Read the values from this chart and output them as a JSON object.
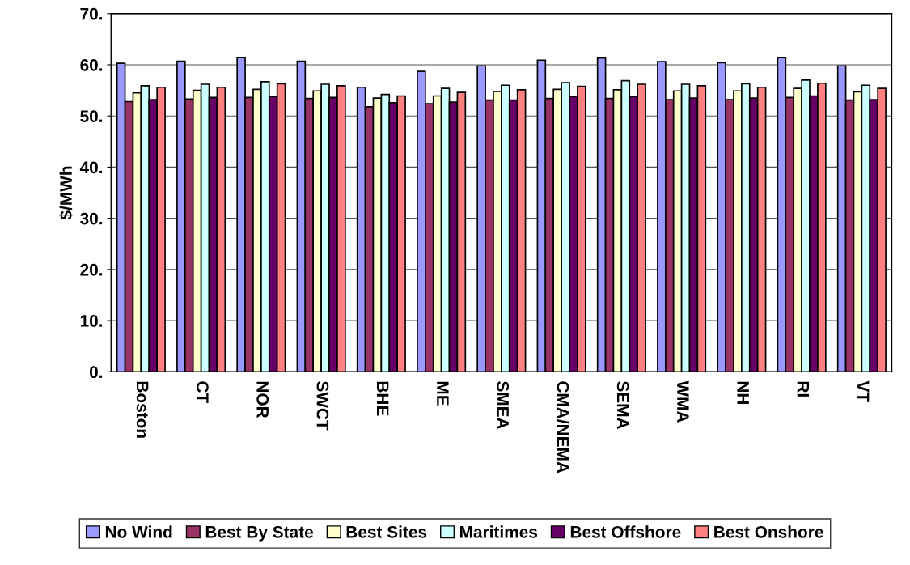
{
  "chart_data": {
    "type": "bar",
    "ylabel": "$/MWh",
    "categories": [
      "Boston",
      "CT",
      "NOR",
      "SWCT",
      "BHE",
      "ME",
      "SMEA",
      "CMA/NEMA",
      "SEMA",
      "WMA",
      "NH",
      "RI",
      "VT"
    ],
    "series": [
      {
        "name": "No Wind",
        "color": "#9999ff",
        "values": [
          60.3,
          60.7,
          61.4,
          60.7,
          55.6,
          58.7,
          59.8,
          60.9,
          61.3,
          60.6,
          60.4,
          61.4,
          59.8
        ]
      },
      {
        "name": "Best By State",
        "color": "#993366",
        "values": [
          52.8,
          53.3,
          53.6,
          53.4,
          51.8,
          52.4,
          53.1,
          53.4,
          53.4,
          53.2,
          53.2,
          53.6,
          53.1
        ]
      },
      {
        "name": "Best Sites",
        "color": "#ffffcc",
        "values": [
          54.5,
          55.0,
          55.2,
          54.9,
          53.5,
          53.9,
          54.8,
          55.2,
          55.1,
          54.9,
          54.9,
          55.4,
          54.7
        ]
      },
      {
        "name": "Maritimes",
        "color": "#ccffff",
        "values": [
          55.9,
          56.2,
          56.7,
          56.2,
          54.2,
          55.4,
          56.0,
          56.5,
          56.9,
          56.2,
          56.3,
          57.0,
          56.0
        ]
      },
      {
        "name": "Best Offshore",
        "color": "#660066",
        "values": [
          53.2,
          53.6,
          53.8,
          53.6,
          52.6,
          52.7,
          53.1,
          53.8,
          53.8,
          53.5,
          53.5,
          53.9,
          53.2
        ]
      },
      {
        "name": "Best Onshore",
        "color": "#ff8080",
        "values": [
          55.6,
          55.6,
          56.3,
          55.9,
          53.9,
          54.6,
          55.1,
          55.8,
          56.2,
          55.9,
          55.6,
          56.4,
          55.4
        ]
      }
    ],
    "ylim": [
      0,
      70
    ],
    "yticks": [
      {
        "value": 0,
        "label": "0."
      },
      {
        "value": 10,
        "label": "10."
      },
      {
        "value": 20,
        "label": "20."
      },
      {
        "value": 30,
        "label": "30."
      },
      {
        "value": 40,
        "label": "40."
      },
      {
        "value": 50,
        "label": "50."
      },
      {
        "value": 60,
        "label": "60."
      },
      {
        "value": 70,
        "label": "70."
      }
    ],
    "grid": "y",
    "legend": "bottom"
  }
}
